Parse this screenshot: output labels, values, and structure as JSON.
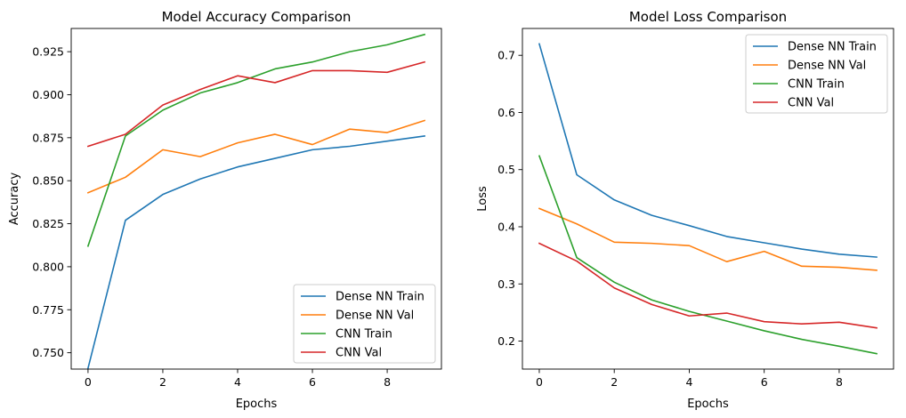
{
  "chart_data": [
    {
      "type": "line",
      "title": "Model Accuracy Comparison",
      "xlabel": "Epochs",
      "ylabel": "Accuracy",
      "xlim": [
        -0.45,
        9.45
      ],
      "ylim": [
        0.7405,
        0.9385
      ],
      "x": [
        0,
        1,
        2,
        3,
        4,
        5,
        6,
        7,
        8,
        9
      ],
      "xticks": [
        "0",
        "2",
        "4",
        "6",
        "8"
      ],
      "yticks": [
        "0.750",
        "0.775",
        "0.800",
        "0.825",
        "0.850",
        "0.875",
        "0.900",
        "0.925"
      ],
      "legend_position": "lower-right",
      "grid": false,
      "series": [
        {
          "name": "Dense NN Train",
          "color": "#1f77b4",
          "values": [
            0.741,
            0.827,
            0.842,
            0.851,
            0.858,
            0.863,
            0.868,
            0.87,
            0.873,
            0.876
          ]
        },
        {
          "name": "Dense NN Val",
          "color": "#ff7f0e",
          "values": [
            0.843,
            0.852,
            0.868,
            0.864,
            0.872,
            0.877,
            0.871,
            0.88,
            0.878,
            0.885
          ]
        },
        {
          "name": "CNN Train",
          "color": "#2ca02c",
          "values": [
            0.812,
            0.876,
            0.891,
            0.901,
            0.907,
            0.915,
            0.919,
            0.925,
            0.929,
            0.935
          ]
        },
        {
          "name": "CNN Val",
          "color": "#d62728",
          "values": [
            0.87,
            0.877,
            0.894,
            0.903,
            0.911,
            0.907,
            0.914,
            0.914,
            0.913,
            0.919
          ]
        }
      ]
    },
    {
      "type": "line",
      "title": "Model Loss Comparison",
      "xlabel": "Epochs",
      "ylabel": "Loss",
      "xlim": [
        -0.45,
        9.45
      ],
      "ylim": [
        0.151,
        0.747
      ],
      "x": [
        0,
        1,
        2,
        3,
        4,
        5,
        6,
        7,
        8,
        9
      ],
      "xticks": [
        "0",
        "2",
        "4",
        "6",
        "8"
      ],
      "yticks": [
        "0.2",
        "0.3",
        "0.4",
        "0.5",
        "0.6",
        "0.7"
      ],
      "legend_position": "upper-right",
      "grid": false,
      "series": [
        {
          "name": "Dense NN Train",
          "color": "#1f77b4",
          "values": [
            0.72,
            0.491,
            0.447,
            0.42,
            0.402,
            0.383,
            0.372,
            0.361,
            0.352,
            0.347
          ]
        },
        {
          "name": "Dense NN Val",
          "color": "#ff7f0e",
          "values": [
            0.432,
            0.405,
            0.373,
            0.371,
            0.367,
            0.339,
            0.357,
            0.331,
            0.329,
            0.324
          ]
        },
        {
          "name": "CNN Train",
          "color": "#2ca02c",
          "values": [
            0.524,
            0.346,
            0.303,
            0.272,
            0.252,
            0.235,
            0.218,
            0.203,
            0.191,
            0.178
          ]
        },
        {
          "name": "CNN Val",
          "color": "#d62728",
          "values": [
            0.371,
            0.34,
            0.293,
            0.264,
            0.244,
            0.249,
            0.234,
            0.23,
            0.233,
            0.223
          ]
        }
      ]
    }
  ]
}
